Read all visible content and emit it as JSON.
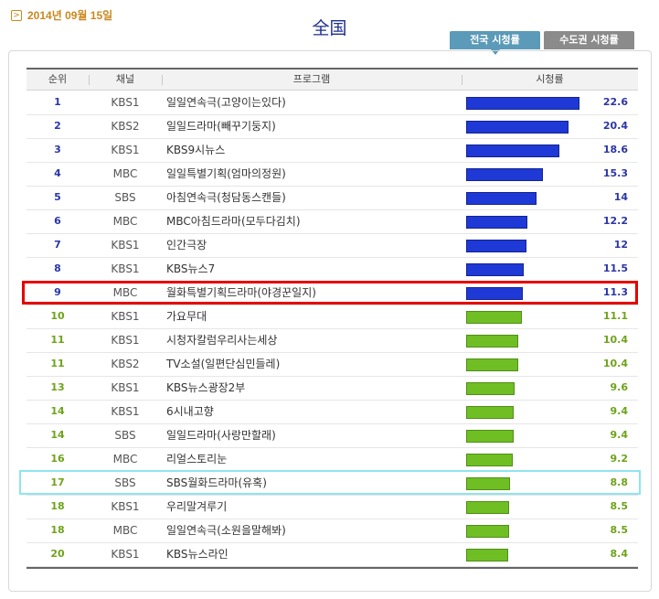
{
  "date": {
    "icon": "chevron-right-icon",
    "text": "2014년 09월 15일"
  },
  "region_title": "全国",
  "tabs": [
    {
      "label": "전국 시청률",
      "active": true
    },
    {
      "label": "수도권 시청률",
      "active": false
    }
  ],
  "headers": {
    "rank": "순위",
    "channel": "채널",
    "program": "프로그램",
    "rating": "시청률"
  },
  "colors": {
    "top_rank": "#2b36a6",
    "lower_rank": "#6ea31a",
    "top_bar": "#1f39d6",
    "lower_bar": "#6fbe24",
    "highlight_red": "#e60000",
    "highlight_cyan": "#8ee5ee"
  },
  "chart_data": {
    "type": "bar",
    "orientation": "horizontal",
    "categories": [
      "일일연속극(고양이는있다)",
      "일일드라마(빼꾸기둥지)",
      "KBS9시뉴스",
      "일일특별기획(엄마의정원)",
      "아침연속극(청담동스캔들)",
      "MBC아침드라마(모두다김치)",
      "인간극장",
      "KBS뉴스7",
      "월화특별기획드라마(야경꾼일지)",
      "가요무대",
      "시청자칼럼우리사는세상",
      "TV소설(일편단심민들레)",
      "KBS뉴스광장2부",
      "6시내고향",
      "일일드라마(사랑만할래)",
      "리얼스토리눈",
      "SBS월화드라마(유혹)",
      "우리말겨루기",
      "일일연속극(소원을말해봐)",
      "KBS뉴스라인"
    ],
    "ranks": [
      "1",
      "2",
      "3",
      "4",
      "5",
      "6",
      "7",
      "8",
      "9",
      "10",
      "11",
      "11",
      "13",
      "14",
      "14",
      "16",
      "17",
      "18",
      "18",
      "20"
    ],
    "channels": [
      "KBS1",
      "KBS2",
      "KBS1",
      "MBC",
      "SBS",
      "MBC",
      "KBS1",
      "KBS1",
      "MBC",
      "KBS1",
      "KBS1",
      "KBS2",
      "KBS1",
      "KBS1",
      "SBS",
      "MBC",
      "SBS",
      "KBS1",
      "MBC",
      "KBS1"
    ],
    "values": [
      22.6,
      20.4,
      18.6,
      15.3,
      14,
      12.2,
      12,
      11.5,
      11.3,
      11.1,
      10.4,
      10.4,
      9.6,
      9.4,
      9.4,
      9.2,
      8.8,
      8.5,
      8.5,
      8.4
    ],
    "value_labels": [
      "22.6",
      "20.4",
      "18.6",
      "15.3",
      "14",
      "12.2",
      "12",
      "11.5",
      "11.3",
      "11.1",
      "10.4",
      "10.4",
      "9.6",
      "9.4",
      "9.4",
      "9.2",
      "8.8",
      "8.5",
      "8.5",
      "8.4"
    ],
    "highlight_red_index": 8,
    "highlight_cyan_index": 16
  }
}
